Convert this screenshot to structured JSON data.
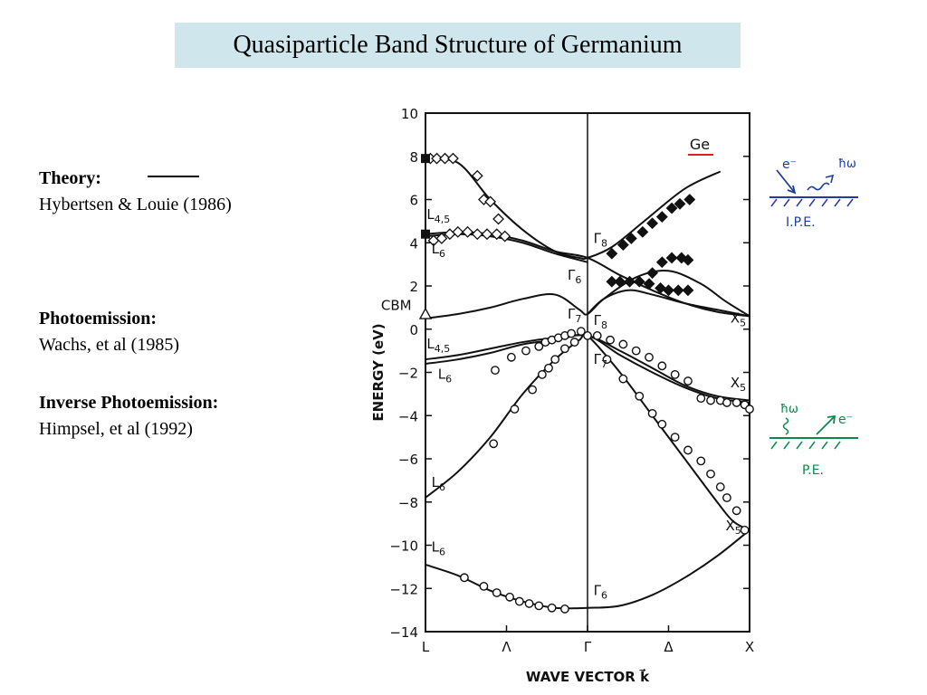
{
  "title": "Quasiparticle Band Structure of Germanium",
  "legend": {
    "theory_heading": "Theory:",
    "theory_ref": "Hybertsen & Louie (1986)",
    "photo_heading": "Photoemission:",
    "photo_ref": "Wachs, et al (1985)",
    "inverse_heading": "Inverse Photoemission:",
    "inverse_ref": "Himpsel, et al (1992)"
  },
  "annotations": {
    "ipe": {
      "electron": "e⁻",
      "photon": "ħω",
      "label": "I.P.E.",
      "color": "#1f3e9a"
    },
    "pe": {
      "electron": "e⁻",
      "photon": "ħω",
      "label": "P.E.",
      "color": "#0a8a4a"
    }
  },
  "chart_data": {
    "type": "scatter",
    "material": "Ge",
    "material_underline_color": "#e02020",
    "xlabel": "WAVE VECTOR k⃗",
    "ylabel": "ENERGY (eV)",
    "ylim": [
      -14,
      10
    ],
    "yticks": [
      -14,
      -12,
      -10,
      -8,
      -6,
      -4,
      -2,
      0,
      2,
      4,
      6,
      8,
      10
    ],
    "xticks": [
      {
        "label": "L",
        "pos": 0
      },
      {
        "label": "Λ",
        "pos": 0.5
      },
      {
        "label": "Γ",
        "pos": 1
      },
      {
        "label": "Δ",
        "pos": 1.5
      },
      {
        "label": "X",
        "pos": 2
      }
    ],
    "band_labels": [
      {
        "text": "L4,5",
        "x": 0.08,
        "y": 5.1
      },
      {
        "text": "L6",
        "x": 0.08,
        "y": 3.5
      },
      {
        "text": "Γ8",
        "x": 1.08,
        "y": 4.0
      },
      {
        "text": "Γ6",
        "x": 0.92,
        "y": 2.3
      },
      {
        "text": "CBM",
        "x": -0.18,
        "y": 0.9
      },
      {
        "text": "Γ7",
        "x": 0.92,
        "y": 0.5
      },
      {
        "text": "Γ8",
        "x": 1.08,
        "y": 0.2
      },
      {
        "text": "L4,5",
        "x": 0.08,
        "y": -0.9
      },
      {
        "text": "L6",
        "x": 0.12,
        "y": -2.3
      },
      {
        "text": "Γ7",
        "x": 1.08,
        "y": -1.6
      },
      {
        "text": "X5",
        "x": 1.93,
        "y": 0.3
      },
      {
        "text": "X5",
        "x": 1.93,
        "y": -2.7
      },
      {
        "text": "L6",
        "x": 0.08,
        "y": -7.3
      },
      {
        "text": "X5",
        "x": 1.9,
        "y": -9.3
      },
      {
        "text": "L6",
        "x": 0.08,
        "y": -10.3
      },
      {
        "text": "Γ6",
        "x": 1.08,
        "y": -12.3
      }
    ],
    "theory_curves": [
      {
        "name": "c1",
        "points": [
          [
            0,
            7.8
          ],
          [
            0.2,
            7.7
          ],
          [
            0.4,
            6.0
          ],
          [
            0.6,
            4.6
          ],
          [
            0.8,
            3.6
          ],
          [
            0.95,
            3.3
          ],
          [
            1.0,
            3.3
          ],
          [
            1.15,
            3.8
          ],
          [
            1.35,
            5.0
          ],
          [
            1.6,
            6.5
          ],
          [
            1.82,
            7.3
          ]
        ]
      },
      {
        "name": "c2",
        "points": [
          [
            0,
            4.4
          ],
          [
            0.2,
            4.5
          ],
          [
            0.4,
            4.4
          ],
          [
            0.6,
            4.1
          ],
          [
            0.8,
            3.6
          ],
          [
            1.0,
            3.3
          ],
          [
            1.2,
            2.5
          ],
          [
            1.4,
            1.8
          ],
          [
            1.6,
            1.2
          ],
          [
            1.8,
            0.8
          ],
          [
            2.0,
            0.6
          ]
        ]
      },
      {
        "name": "c3",
        "points": [
          [
            0,
            4.3
          ],
          [
            0.2,
            4.4
          ],
          [
            0.4,
            4.3
          ],
          [
            0.6,
            4.0
          ],
          [
            0.8,
            3.5
          ],
          [
            1.0,
            3.1
          ]
        ]
      },
      {
        "name": "c4",
        "points": [
          [
            0,
            0.5
          ],
          [
            0.2,
            0.7
          ],
          [
            0.4,
            1.0
          ],
          [
            0.6,
            1.4
          ],
          [
            0.8,
            1.6
          ],
          [
            0.95,
            0.9
          ],
          [
            1.0,
            0.7
          ],
          [
            1.1,
            1.4
          ],
          [
            1.3,
            2.4
          ],
          [
            1.5,
            2.7
          ],
          [
            1.7,
            2.1
          ],
          [
            1.85,
            1.3
          ],
          [
            2.0,
            0.6
          ]
        ]
      },
      {
        "name": "c5",
        "points": [
          [
            1.0,
            0.7
          ],
          [
            1.1,
            1.4
          ],
          [
            1.25,
            1.8
          ],
          [
            1.4,
            1.6
          ],
          [
            1.6,
            1.2
          ],
          [
            1.8,
            0.9
          ],
          [
            2.0,
            0.6
          ]
        ]
      },
      {
        "name": "v1",
        "points": [
          [
            0,
            -1.4
          ],
          [
            0.2,
            -1.2
          ],
          [
            0.4,
            -0.9
          ],
          [
            0.6,
            -0.6
          ],
          [
            0.8,
            -0.4
          ],
          [
            1.0,
            -0.3
          ],
          [
            1.2,
            -1.0
          ],
          [
            1.4,
            -1.8
          ],
          [
            1.6,
            -2.6
          ],
          [
            1.8,
            -3.1
          ],
          [
            2.0,
            -3.3
          ]
        ]
      },
      {
        "name": "v2",
        "points": [
          [
            0,
            -1.6
          ],
          [
            0.2,
            -1.4
          ],
          [
            0.4,
            -1.1
          ],
          [
            0.6,
            -0.7
          ],
          [
            0.8,
            -0.5
          ],
          [
            1.0,
            -0.3
          ],
          [
            1.2,
            -1.2
          ],
          [
            1.4,
            -2.0
          ],
          [
            1.6,
            -2.7
          ],
          [
            1.8,
            -3.2
          ],
          [
            2.0,
            -3.4
          ]
        ]
      },
      {
        "name": "v3",
        "points": [
          [
            0,
            -7.8
          ],
          [
            0.2,
            -6.6
          ],
          [
            0.4,
            -5.0
          ],
          [
            0.6,
            -3.0
          ],
          [
            0.8,
            -1.4
          ],
          [
            0.95,
            -0.5
          ],
          [
            1.0,
            -0.3
          ],
          [
            1.2,
            -2.0
          ],
          [
            1.4,
            -4.0
          ],
          [
            1.6,
            -6.0
          ],
          [
            1.8,
            -8.0
          ],
          [
            1.9,
            -8.9
          ],
          [
            2.0,
            -9.3
          ]
        ]
      },
      {
        "name": "v4",
        "points": [
          [
            0,
            -10.9
          ],
          [
            0.2,
            -11.4
          ],
          [
            0.4,
            -12.1
          ],
          [
            0.6,
            -12.6
          ],
          [
            0.8,
            -12.9
          ],
          [
            1.0,
            -12.9
          ],
          [
            1.2,
            -12.8
          ],
          [
            1.4,
            -12.3
          ],
          [
            1.6,
            -11.5
          ],
          [
            1.8,
            -10.5
          ],
          [
            2.0,
            -9.3
          ]
        ]
      }
    ],
    "series": [
      {
        "name": "Photoemission",
        "marker": "circle",
        "points": [
          [
            0.43,
            -1.9
          ],
          [
            0.53,
            -1.3
          ],
          [
            0.62,
            -1.0
          ],
          [
            0.7,
            -0.8
          ],
          [
            0.74,
            -0.6
          ],
          [
            0.78,
            -0.5
          ],
          [
            0.82,
            -0.4
          ],
          [
            0.86,
            -0.3
          ],
          [
            0.9,
            -0.2
          ],
          [
            0.96,
            -0.1
          ],
          [
            1.0,
            -0.3
          ],
          [
            1.06,
            -0.3
          ],
          [
            1.14,
            -0.5
          ],
          [
            1.22,
            -0.7
          ],
          [
            1.3,
            -1.0
          ],
          [
            1.38,
            -1.3
          ],
          [
            1.46,
            -1.7
          ],
          [
            1.54,
            -2.1
          ],
          [
            1.62,
            -2.4
          ],
          [
            1.7,
            -3.2
          ],
          [
            1.76,
            -3.3
          ],
          [
            1.82,
            -3.3
          ],
          [
            1.86,
            -3.4
          ],
          [
            1.92,
            -3.4
          ],
          [
            1.97,
            -3.5
          ],
          [
            2.0,
            -3.7
          ],
          [
            0.42,
            -5.3
          ],
          [
            0.55,
            -3.7
          ],
          [
            0.66,
            -2.8
          ],
          [
            0.72,
            -2.1
          ],
          [
            0.76,
            -1.8
          ],
          [
            0.8,
            -1.4
          ],
          [
            0.86,
            -0.9
          ],
          [
            0.92,
            -0.6
          ],
          [
            1.12,
            -1.4
          ],
          [
            1.22,
            -2.3
          ],
          [
            1.32,
            -3.1
          ],
          [
            1.4,
            -3.9
          ],
          [
            1.46,
            -4.4
          ],
          [
            1.54,
            -5.0
          ],
          [
            1.62,
            -5.6
          ],
          [
            1.7,
            -6.1
          ],
          [
            1.76,
            -6.7
          ],
          [
            1.82,
            -7.3
          ],
          [
            1.86,
            -7.8
          ],
          [
            1.92,
            -8.4
          ],
          [
            1.97,
            -9.3
          ],
          [
            0.24,
            -11.5
          ],
          [
            0.36,
            -11.9
          ],
          [
            0.44,
            -12.2
          ],
          [
            0.52,
            -12.4
          ],
          [
            0.58,
            -12.6
          ],
          [
            0.64,
            -12.7
          ],
          [
            0.7,
            -12.8
          ],
          [
            0.78,
            -12.9
          ],
          [
            0.86,
            -12.95
          ]
        ]
      },
      {
        "name": "Inverse Photoemission (open)",
        "marker": "diamond-open",
        "points": [
          [
            0.03,
            7.9
          ],
          [
            0.07,
            7.9
          ],
          [
            0.12,
            7.9
          ],
          [
            0.17,
            7.9
          ],
          [
            0.32,
            7.1
          ],
          [
            0.36,
            6.0
          ],
          [
            0.4,
            5.9
          ],
          [
            0.45,
            5.1
          ],
          [
            0.05,
            4.1
          ],
          [
            0.1,
            4.2
          ],
          [
            0.15,
            4.4
          ],
          [
            0.2,
            4.5
          ],
          [
            0.26,
            4.5
          ],
          [
            0.32,
            4.4
          ],
          [
            0.38,
            4.4
          ],
          [
            0.44,
            4.4
          ],
          [
            0.49,
            4.3
          ]
        ]
      },
      {
        "name": "Inverse Photoemission (filled)",
        "marker": "diamond-filled",
        "points": [
          [
            1.15,
            3.5
          ],
          [
            1.22,
            3.9
          ],
          [
            1.27,
            4.2
          ],
          [
            1.34,
            4.5
          ],
          [
            1.4,
            4.9
          ],
          [
            1.46,
            5.2
          ],
          [
            1.52,
            5.6
          ],
          [
            1.57,
            5.8
          ],
          [
            1.63,
            6.0
          ],
          [
            1.15,
            2.2
          ],
          [
            1.2,
            2.2
          ],
          [
            1.26,
            2.2
          ],
          [
            1.32,
            2.2
          ],
          [
            1.38,
            2.1
          ],
          [
            1.45,
            1.9
          ],
          [
            1.5,
            1.8
          ],
          [
            1.56,
            1.8
          ],
          [
            1.62,
            1.8
          ],
          [
            1.4,
            2.6
          ],
          [
            1.46,
            3.1
          ],
          [
            1.52,
            3.3
          ],
          [
            1.58,
            3.3
          ],
          [
            1.62,
            3.2
          ]
        ]
      },
      {
        "name": "edge",
        "marker": "square-filled",
        "points": [
          [
            0.0,
            7.9
          ],
          [
            0.0,
            4.4
          ]
        ]
      },
      {
        "name": "CBM",
        "marker": "triangle-open",
        "points": [
          [
            0.0,
            0.7
          ]
        ]
      }
    ]
  }
}
